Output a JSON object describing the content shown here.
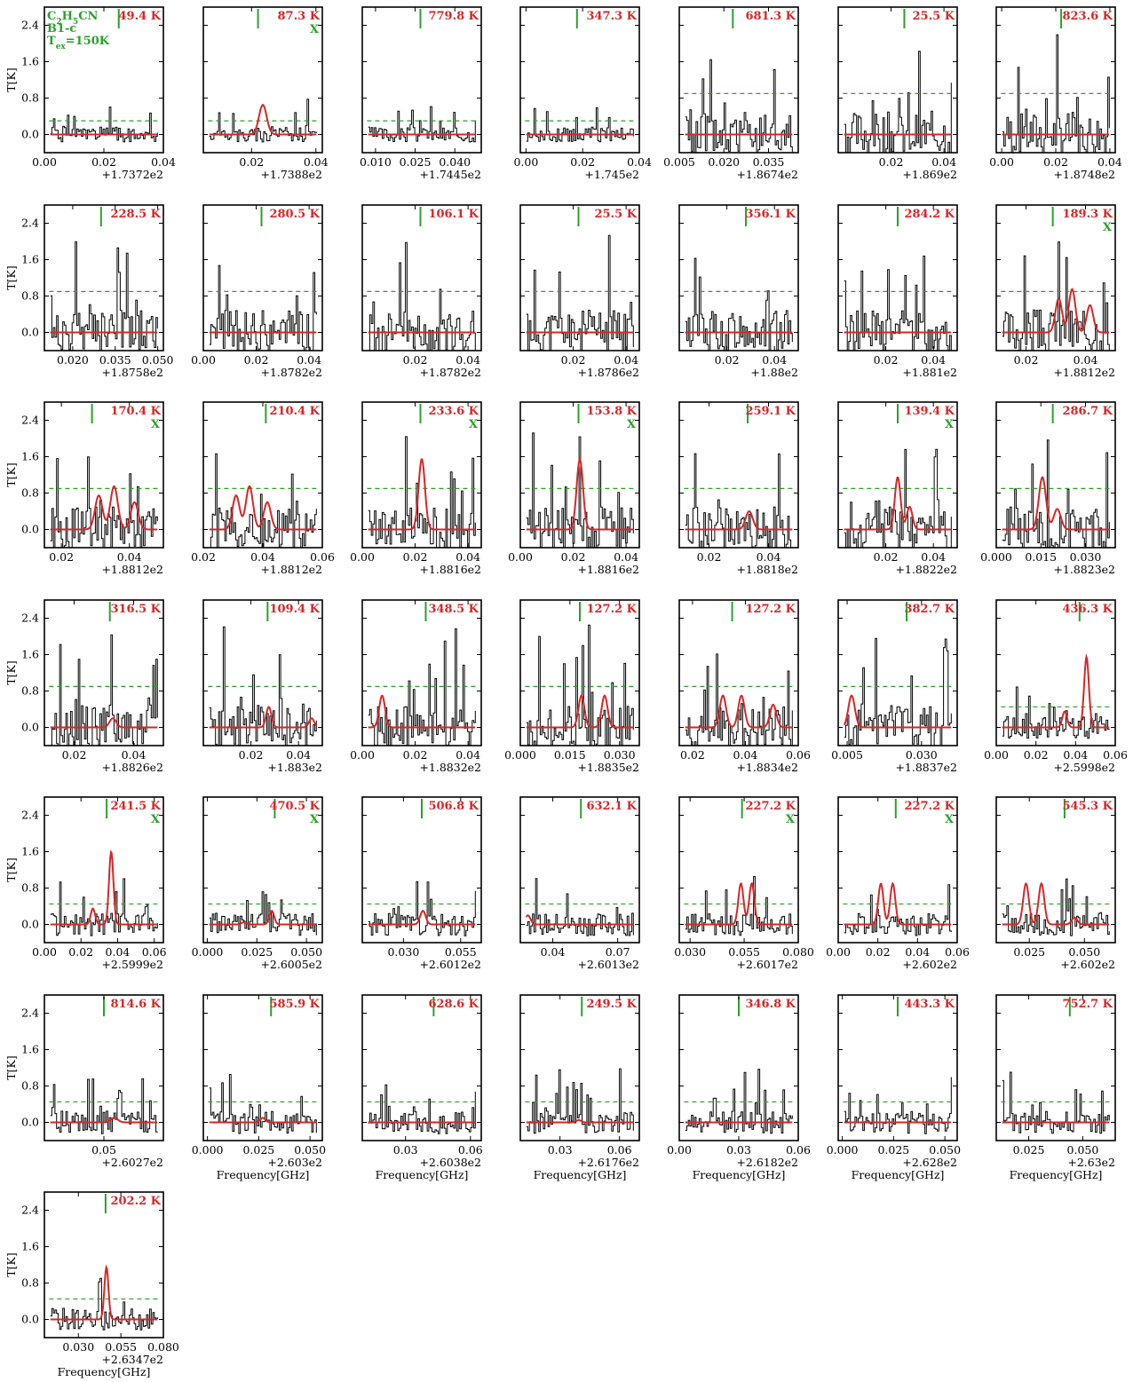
{
  "colors": {
    "model_line": "#d62728",
    "threshold_line": "#2ca02c",
    "marker_line": "#2ca02c",
    "spectrum_line": "#000000",
    "temperature_text": "#d62728",
    "annotation_text": "#2ca02c"
  },
  "info": {
    "molecule": "C2H5CN",
    "source": "B1-c",
    "tex": "Tex=150K"
  },
  "chart_data": {
    "type": "line",
    "ylabel": "T[K]",
    "xlabel": "Frequency[GHz]",
    "ylim": [
      -0.4,
      2.8
    ],
    "yticks": [
      "0.0",
      "0.8",
      "1.6",
      "2.4"
    ],
    "panels": [
      {
        "temp": "49.4 K",
        "x": false,
        "offset": "+1.7372e2",
        "xticks": [
          "0.00",
          "0.02",
          "0.04"
        ],
        "xlim": [
          0,
          0.04
        ],
        "line": 0.025,
        "thr": 0.3,
        "sp": 1,
        "model": []
      },
      {
        "temp": "87.3 K",
        "x": true,
        "offset": "+1.7388e2",
        "xticks": [
          "0.02",
          "0.04"
        ],
        "xlim": [
          0.005,
          0.042
        ],
        "line": 0.022,
        "thr": 0.3,
        "sp": 2,
        "model": [
          [
            0.0235,
            0.65,
            0.0012
          ]
        ]
      },
      {
        "temp": "779.8 K",
        "x": false,
        "offset": "+1.7445e2",
        "xticks": [
          "0.010",
          "0.025",
          "0.040"
        ],
        "xlim": [
          0.005,
          0.05
        ],
        "line": 0.027,
        "thr": 0.3,
        "sp": 3,
        "model": []
      },
      {
        "temp": "347.3 K",
        "x": false,
        "offset": "+1.745e2",
        "xticks": [
          "0.00",
          "0.02",
          "0.04"
        ],
        "xlim": [
          -0.002,
          0.04
        ],
        "line": 0.018,
        "thr": 0.3,
        "sp": 4,
        "model": []
      },
      {
        "temp": "681.3 K",
        "x": false,
        "offset": "+1.8674e2",
        "xticks": [
          "0.005",
          "0.020",
          "0.035"
        ],
        "xlim": [
          0.005,
          0.045
        ],
        "line": 0.023,
        "thr": 0.9,
        "sp": 5,
        "model": []
      },
      {
        "temp": "25.5 K",
        "x": false,
        "offset": "+1.869e2",
        "xticks": [
          "0.02",
          "0.04"
        ],
        "xlim": [
          0,
          0.045
        ],
        "line": 0.025,
        "thr": 0.9,
        "sp": 6,
        "model": []
      },
      {
        "temp": "823.6 K",
        "x": false,
        "offset": "+1.8748e2",
        "xticks": [
          "0.00",
          "0.02",
          "0.04"
        ],
        "xlim": [
          -0.002,
          0.042
        ],
        "line": 0.022,
        "thr": 0.9,
        "sp": 7,
        "model": []
      },
      {
        "temp": "228.5 K",
        "x": false,
        "offset": "+1.8758e2",
        "xticks": [
          "0.020",
          "0.035",
          "0.050"
        ],
        "xlim": [
          0.01,
          0.052
        ],
        "line": 0.03,
        "thr": 0.9,
        "sp": 8,
        "model": []
      },
      {
        "temp": "280.5 K",
        "x": false,
        "offset": "+1.8782e2",
        "xticks": [
          "0.00",
          "0.02",
          "0.04"
        ],
        "xlim": [
          0,
          0.045
        ],
        "line": 0.022,
        "thr": 0.9,
        "sp": 9,
        "model": []
      },
      {
        "temp": "106.1 K",
        "x": false,
        "offset": "+1.8782e2",
        "xticks": [
          "0.02",
          "0.04"
        ],
        "xlim": [
          0,
          0.045
        ],
        "line": 0.022,
        "thr": 0.9,
        "sp": 10,
        "model": []
      },
      {
        "temp": "25.5 K",
        "x": false,
        "offset": "+1.8786e2",
        "xticks": [
          "0.02",
          "0.04"
        ],
        "xlim": [
          0,
          0.045
        ],
        "line": 0.022,
        "thr": 0.9,
        "sp": 11,
        "model": []
      },
      {
        "temp": "356.1 K",
        "x": false,
        "offset": "+1.88e2",
        "xticks": [
          "0.02",
          "0.04"
        ],
        "xlim": [
          0,
          0.05
        ],
        "line": 0.028,
        "thr": 0.9,
        "sp": 12,
        "model": []
      },
      {
        "temp": "284.2 K",
        "x": false,
        "offset": "+1.881e2",
        "xticks": [
          "0.02",
          "0.04"
        ],
        "xlim": [
          0,
          0.05
        ],
        "line": 0.025,
        "thr": 0.9,
        "sp": 13,
        "model": []
      },
      {
        "temp": "189.3 K",
        "x": true,
        "offset": "+1.8812e2",
        "xticks": [
          "0.02",
          "0.04"
        ],
        "xlim": [
          0.01,
          0.05
        ],
        "line": 0.029,
        "thr": 0.9,
        "sp": 14,
        "model": [
          [
            0.031,
            0.75,
            0.0011
          ],
          [
            0.0355,
            0.95,
            0.0011
          ],
          [
            0.0415,
            0.6,
            0.0011
          ]
        ]
      },
      {
        "temp": "170.4 K",
        "x": true,
        "offset": "+1.8812e2",
        "xticks": [
          "0.02",
          "0.04"
        ],
        "xlim": [
          0.015,
          0.05
        ],
        "line": 0.029,
        "thr": 0.9,
        "sp": 15,
        "model": [
          [
            0.031,
            0.75,
            0.0011
          ],
          [
            0.0355,
            0.95,
            0.0011
          ],
          [
            0.0415,
            0.6,
            0.0011
          ]
        ]
      },
      {
        "temp": "210.4 K",
        "x": false,
        "offset": "+1.8812e2",
        "xticks": [
          "0.02",
          "0.04",
          "0.06"
        ],
        "xlim": [
          0.02,
          0.06
        ],
        "line": 0.041,
        "thr": 0.9,
        "sp": 16,
        "model": [
          [
            0.031,
            0.75,
            0.0012
          ],
          [
            0.0355,
            0.95,
            0.0012
          ],
          [
            0.0415,
            0.6,
            0.0012
          ]
        ]
      },
      {
        "temp": "233.6 K",
        "x": true,
        "offset": "+1.8816e2",
        "xticks": [
          "0.00",
          "0.02",
          "0.04"
        ],
        "xlim": [
          0,
          0.045
        ],
        "line": 0.022,
        "thr": 0.9,
        "sp": 17,
        "model": [
          [
            0.0225,
            1.55,
            0.0012
          ]
        ]
      },
      {
        "temp": "153.8 K",
        "x": true,
        "offset": "+1.8816e2",
        "xticks": [
          "0.00",
          "0.02",
          "0.04"
        ],
        "xlim": [
          0,
          0.045
        ],
        "line": 0.022,
        "thr": 0.9,
        "sp": 18,
        "model": [
          [
            0.0225,
            1.55,
            0.0012
          ]
        ]
      },
      {
        "temp": "259.1 K",
        "x": false,
        "offset": "+1.8818e2",
        "xticks": [
          "0.02",
          "0.04"
        ],
        "xlim": [
          0.01,
          0.05
        ],
        "line": 0.033,
        "thr": 0.9,
        "sp": 19,
        "model": [
          [
            0.0335,
            0.4,
            0.0012
          ]
        ]
      },
      {
        "temp": "139.4 K",
        "x": true,
        "offset": "+1.8822e2",
        "xticks": [
          "0.02",
          "0.04"
        ],
        "xlim": [
          0,
          0.05
        ],
        "line": 0.025,
        "thr": 0.9,
        "sp": 20,
        "model": [
          [
            0.025,
            1.15,
            0.0012
          ],
          [
            0.03,
            0.5,
            0.0012
          ]
        ]
      },
      {
        "temp": "286.7 K",
        "x": false,
        "offset": "+1.8823e2",
        "xticks": [
          "0.000",
          "0.015",
          "0.030"
        ],
        "xlim": [
          0,
          0.04
        ],
        "line": 0.019,
        "thr": 0.9,
        "sp": 21,
        "model": [
          [
            0.0155,
            1.15,
            0.0012
          ],
          [
            0.0205,
            0.45,
            0.0012
          ]
        ]
      },
      {
        "temp": "316.5 K",
        "x": false,
        "offset": "+1.8826e2",
        "xticks": [
          "0.02",
          "0.04"
        ],
        "xlim": [
          0.01,
          0.05
        ],
        "line": 0.032,
        "thr": 0.9,
        "sp": 22,
        "model": [
          [
            0.033,
            0.2,
            0.0011
          ]
        ]
      },
      {
        "temp": "109.4 K",
        "x": false,
        "offset": "+1.883e2",
        "xticks": [
          "0.02",
          "0.04"
        ],
        "xlim": [
          0,
          0.05
        ],
        "line": 0.027,
        "thr": 0.9,
        "sp": 23,
        "model": [
          [
            0.0275,
            0.45,
            0.0011
          ],
          [
            0.0455,
            0.2,
            0.0011
          ]
        ]
      },
      {
        "temp": "348.5 K",
        "x": false,
        "offset": "+1.8832e2",
        "xticks": [
          "0.00",
          "0.02",
          "0.04"
        ],
        "xlim": [
          0,
          0.045
        ],
        "line": 0.024,
        "thr": 0.9,
        "sp": 24,
        "model": [
          [
            0.0075,
            0.7,
            0.0011
          ]
        ]
      },
      {
        "temp": "127.2 K",
        "x": false,
        "offset": "+1.8835e2",
        "xticks": [
          "0.000",
          "0.015",
          "0.030"
        ],
        "xlim": [
          0,
          0.036
        ],
        "line": 0.018,
        "thr": 0.9,
        "sp": 25,
        "model": [
          [
            0.0185,
            0.7,
            0.0009
          ],
          [
            0.0255,
            0.7,
            0.0009
          ]
        ]
      },
      {
        "temp": "127.2 K",
        "x": false,
        "offset": "+1.8834e2",
        "xticks": [
          "0.02",
          "0.04",
          "0.06"
        ],
        "xlim": [
          0.015,
          0.06
        ],
        "line": 0.035,
        "thr": 0.9,
        "sp": 26,
        "model": [
          [
            0.0315,
            0.7,
            0.0012
          ],
          [
            0.0385,
            0.7,
            0.0012
          ],
          [
            0.0505,
            0.5,
            0.0012
          ]
        ]
      },
      {
        "temp": "382.7 K",
        "x": false,
        "offset": "+1.8837e2",
        "xticks": [
          "0.005",
          "0.030"
        ],
        "xlim": [
          0.002,
          0.042
        ],
        "line": 0.025,
        "thr": 0.9,
        "sp": 27,
        "model": [
          [
            0.0065,
            0.7,
            0.0011
          ]
        ]
      },
      {
        "temp": "436.3 K",
        "x": false,
        "offset": "+2.5998e2",
        "xticks": [
          "0.00",
          "0.02",
          "0.04",
          "0.06"
        ],
        "xlim": [
          0,
          0.06
        ],
        "line": 0.042,
        "thr": 0.45,
        "sp": 28,
        "model": [
          [
            0.0345,
            0.35,
            0.0012
          ],
          [
            0.0455,
            1.55,
            0.0012
          ]
        ]
      },
      {
        "temp": "241.5 K",
        "x": true,
        "offset": "+2.5999e2",
        "xticks": [
          "0.00",
          "0.02",
          "0.04",
          "0.06"
        ],
        "xlim": [
          0,
          0.065
        ],
        "line": 0.034,
        "thr": 0.45,
        "sp": 29,
        "model": [
          [
            0.0265,
            0.35,
            0.0012
          ],
          [
            0.0365,
            1.6,
            0.0012
          ]
        ]
      },
      {
        "temp": "470.5 K",
        "x": true,
        "offset": "+2.6005e2",
        "xticks": [
          "0.000",
          "0.025",
          "0.050"
        ],
        "xlim": [
          -0.002,
          0.058
        ],
        "line": 0.034,
        "thr": 0.45,
        "sp": 30,
        "model": [
          [
            0.0185,
            0.05,
            0.0012
          ],
          [
            0.0325,
            0.3,
            0.0012
          ]
        ]
      },
      {
        "temp": "506.8 K",
        "x": false,
        "offset": "+2.6012e2",
        "xticks": [
          "0.030",
          "0.055"
        ],
        "xlim": [
          0.012,
          0.064
        ],
        "line": 0.038,
        "thr": 0.45,
        "sp": 31,
        "model": [
          [
            0.0385,
            0.3,
            0.0012
          ]
        ]
      },
      {
        "temp": "632.1 K",
        "x": false,
        "offset": "+2.6013e2",
        "xticks": [
          "0.04",
          "0.07"
        ],
        "xlim": [
          0.025,
          0.08
        ],
        "line": 0.053,
        "thr": 0.45,
        "sp": 32,
        "model": [
          [
            0.0285,
            0.2,
            0.0012
          ]
        ]
      },
      {
        "temp": "227.2 K",
        "x": true,
        "offset": "+2.6017e2",
        "xticks": [
          "0.030",
          "0.055",
          "0.080"
        ],
        "xlim": [
          0.025,
          0.08
        ],
        "line": 0.054,
        "thr": 0.45,
        "sp": 33,
        "model": [
          [
            0.0535,
            0.9,
            0.0012
          ],
          [
            0.0585,
            0.9,
            0.0012
          ]
        ]
      },
      {
        "temp": "227.2 K",
        "x": true,
        "offset": "+2.602e2",
        "xticks": [
          "0.00",
          "0.02",
          "0.04",
          "0.06"
        ],
        "xlim": [
          0,
          0.06
        ],
        "line": 0.029,
        "thr": 0.45,
        "sp": 34,
        "model": [
          [
            0.0215,
            0.9,
            0.0013
          ],
          [
            0.0275,
            0.9,
            0.0013
          ]
        ]
      },
      {
        "temp": "545.3 K",
        "x": false,
        "offset": "+2.602e2",
        "xticks": [
          "0.025",
          "0.050"
        ],
        "xlim": [
          0.01,
          0.064
        ],
        "line": 0.041,
        "thr": 0.45,
        "sp": 35,
        "model": [
          [
            0.0235,
            0.9,
            0.0013
          ],
          [
            0.0305,
            0.9,
            0.0013
          ],
          [
            0.0455,
            0.15,
            0.0013
          ]
        ]
      },
      {
        "temp": "814.6 K",
        "x": false,
        "offset": "+2.6027e2",
        "xticks": [
          "0.05"
        ],
        "xlim": [
          0.03,
          0.07
        ],
        "line": 0.05,
        "thr": 0.45,
        "sp": 36,
        "model": [
          [
            0.0535,
            0.1,
            0.0012
          ]
        ]
      },
      {
        "temp": "585.9 K",
        "x": false,
        "offset": "+2.603e2",
        "xticks": [
          "0.000",
          "0.025",
          "0.050"
        ],
        "xlim": [
          -0.002,
          0.056
        ],
        "line": 0.031,
        "thr": 0.45,
        "sp": 37,
        "model": [
          [
            0.027,
            0.1,
            0.0012
          ]
        ]
      },
      {
        "temp": "628.6 K",
        "x": false,
        "offset": "+2.6038e2",
        "xticks": [
          "0.03",
          "0.06"
        ],
        "xlim": [
          0.01,
          0.065
        ],
        "line": 0.043,
        "thr": 0.45,
        "sp": 38,
        "model": []
      },
      {
        "temp": "249.5 K",
        "x": false,
        "offset": "+2.6176e2",
        "xticks": [
          "0.03",
          "0.06"
        ],
        "xlim": [
          0.01,
          0.07
        ],
        "line": 0.041,
        "thr": 0.45,
        "sp": 39,
        "model": [
          [
            0.0395,
            0.05,
            0.0012
          ]
        ]
      },
      {
        "temp": "346.8 K",
        "x": false,
        "offset": "+2.6182e2",
        "xticks": [
          "0.00",
          "0.03",
          "0.06"
        ],
        "xlim": [
          0,
          0.06
        ],
        "line": 0.03,
        "thr": 0.45,
        "sp": 40,
        "model": []
      },
      {
        "temp": "443.3 K",
        "x": false,
        "offset": "+2.628e2",
        "xticks": [
          "0.000",
          "0.025",
          "0.050"
        ],
        "xlim": [
          -0.002,
          0.056
        ],
        "line": 0.027,
        "thr": 0.45,
        "sp": 41,
        "model": []
      },
      {
        "temp": "752.7 K",
        "x": false,
        "offset": "+2.63e2",
        "xticks": [
          "0.025",
          "0.050"
        ],
        "xlim": [
          0.01,
          0.065
        ],
        "line": 0.044,
        "thr": 0.45,
        "sp": 42,
        "model": []
      },
      {
        "temp": "202.2 K",
        "x": false,
        "offset": "+2.6347e2",
        "xticks": [
          "0.030",
          "0.055",
          "0.080"
        ],
        "xlim": [
          0.01,
          0.08
        ],
        "line": 0.046,
        "thr": 0.45,
        "sp": 43,
        "model": [
          [
            0.0465,
            1.15,
            0.0012
          ]
        ]
      }
    ]
  }
}
